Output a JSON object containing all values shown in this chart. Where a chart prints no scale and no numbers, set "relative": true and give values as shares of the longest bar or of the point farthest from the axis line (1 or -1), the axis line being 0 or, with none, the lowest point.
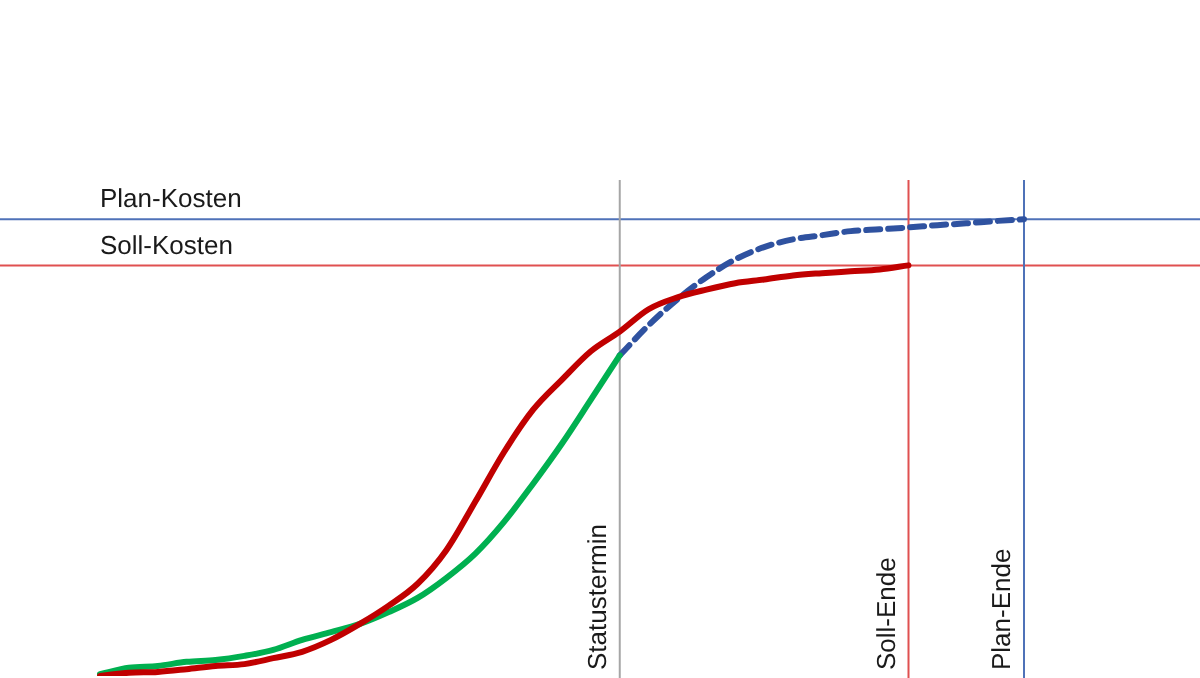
{
  "chart_data": {
    "type": "line",
    "relative": true,
    "tick_labels": false,
    "legend": false,
    "marker": "none",
    "categories": [
      null,
      null,
      null,
      null,
      null,
      null,
      null,
      null,
      null,
      null,
      null,
      null,
      null,
      null,
      null,
      null,
      null,
      null,
      null,
      null,
      null,
      null,
      null,
      null,
      null,
      null,
      null,
      null,
      null,
      null,
      null,
      null,
      null
    ],
    "series": [
      {
        "color": "#c00000",
        "values": [
          0,
          0.007,
          0.009,
          0.015,
          0.022,
          0.026,
          0.039,
          0.053,
          0.079,
          0.114,
          0.154,
          0.202,
          0.276,
          0.382,
          0.491,
          0.583,
          0.649,
          0.711,
          0.754,
          0.803,
          0.829,
          0.846,
          0.86,
          0.868,
          0.877,
          0.882,
          0.886,
          0.89,
          0.899,
          null,
          null,
          null,
          null
        ]
      },
      {
        "color": "#00b050",
        "values": [
          0.004,
          0.018,
          0.022,
          0.031,
          0.035,
          0.044,
          0.057,
          0.079,
          0.096,
          0.114,
          0.14,
          0.171,
          0.215,
          0.268,
          0.338,
          0.421,
          0.509,
          0.605,
          0.702,
          null,
          null,
          null,
          null,
          null,
          null,
          null,
          null,
          null,
          null,
          null,
          null,
          null,
          null
        ]
      },
      {
        "color": "#2f52a0",
        "line_style": "dashed",
        "values": [
          null,
          null,
          null,
          null,
          null,
          null,
          null,
          null,
          null,
          null,
          null,
          null,
          null,
          null,
          null,
          null,
          null,
          null,
          0.702,
          0.768,
          0.825,
          0.873,
          0.912,
          0.939,
          0.956,
          0.965,
          0.974,
          0.978,
          0.982,
          0.987,
          0.991,
          0.996,
          1
        ]
      }
    ],
    "ref_lines": [
      {
        "axis": "y",
        "value": 1,
        "label": "Plan-Kosten",
        "color": "#4f72b8"
      },
      {
        "axis": "y",
        "value": 0.899,
        "label": "Soll-Kosten",
        "color": "#e05050"
      }
    ],
    "annotations": [
      "Statustermin",
      "Soll-Ende",
      "Plan-Ende"
    ]
  }
}
